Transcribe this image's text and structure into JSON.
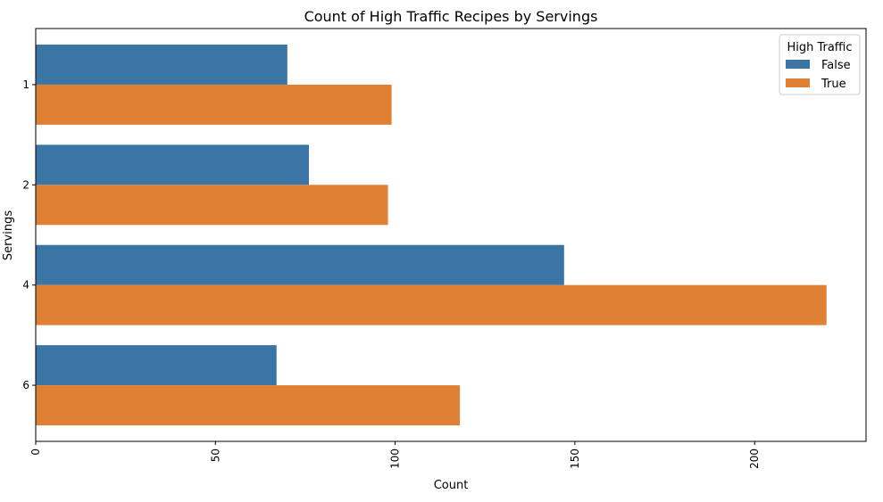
{
  "chart_data": {
    "type": "bar",
    "orientation": "horizontal",
    "title": "Count of High Traffic Recipes by Servings",
    "xlabel": "Count",
    "ylabel": "Servings",
    "categories": [
      "1",
      "2",
      "4",
      "6"
    ],
    "x_ticks": [
      0,
      50,
      100,
      150,
      200
    ],
    "xlim": [
      0,
      231
    ],
    "grid": false,
    "legend": {
      "title": "High Traffic",
      "placement": "top-right"
    },
    "series": [
      {
        "name": "False",
        "color": "#3a75a6",
        "values": [
          70,
          76,
          147,
          67
        ]
      },
      {
        "name": "True",
        "color": "#df8035",
        "values": [
          99,
          98,
          220,
          118
        ]
      }
    ]
  }
}
